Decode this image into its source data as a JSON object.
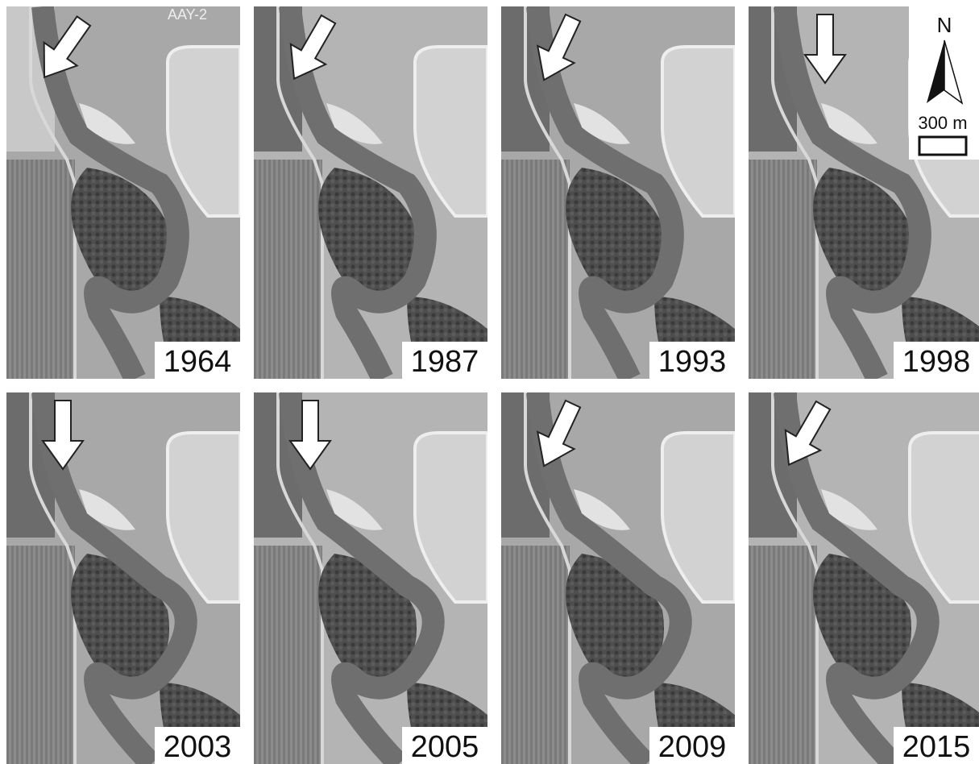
{
  "stamp": "AAY-2",
  "panels": [
    {
      "year": "1964"
    },
    {
      "year": "1987"
    },
    {
      "year": "1993"
    },
    {
      "year": "1998"
    },
    {
      "year": "2003"
    },
    {
      "year": "2005"
    },
    {
      "year": "2009"
    },
    {
      "year": "2015"
    }
  ],
  "north_label": "N",
  "scale_label": "300 m"
}
